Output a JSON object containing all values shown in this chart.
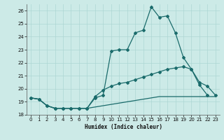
{
  "xlabel": "Humidex (Indice chaleur)",
  "background_color": "#cceae7",
  "grid_color": "#add6d3",
  "line_color": "#1a6b6b",
  "xlim": [
    -0.5,
    23.5
  ],
  "ylim": [
    18,
    26.5
  ],
  "x_ticks": [
    0,
    1,
    2,
    3,
    4,
    5,
    6,
    7,
    8,
    9,
    10,
    11,
    12,
    13,
    14,
    15,
    16,
    17,
    18,
    19,
    20,
    21,
    22,
    23
  ],
  "y_ticks": [
    18,
    19,
    20,
    21,
    22,
    23,
    24,
    25,
    26
  ],
  "line1_x": [
    0,
    1,
    2,
    3,
    4,
    5,
    6,
    7,
    8,
    9,
    10,
    11,
    12,
    13,
    14,
    15,
    16,
    17,
    18,
    19,
    20,
    21,
    22,
    23
  ],
  "line1_y": [
    19.3,
    19.2,
    18.7,
    18.5,
    18.5,
    18.5,
    18.5,
    18.5,
    19.3,
    19.5,
    22.9,
    23.0,
    23.0,
    24.3,
    24.5,
    26.3,
    25.5,
    25.6,
    24.3,
    22.4,
    21.5,
    20.3,
    19.5,
    null
  ],
  "line1_markers": [
    0,
    1,
    2,
    3,
    4,
    5,
    6,
    7,
    8,
    9,
    10,
    11,
    12,
    13,
    14,
    15,
    16,
    17,
    18,
    19,
    20,
    21,
    22
  ],
  "line2_x": [
    0,
    1,
    2,
    3,
    4,
    5,
    6,
    7,
    8,
    9,
    10,
    11,
    12,
    13,
    14,
    15,
    16,
    17,
    18,
    19,
    20,
    21,
    22,
    23
  ],
  "line2_y": [
    19.3,
    19.2,
    18.7,
    18.5,
    18.5,
    18.5,
    18.5,
    18.5,
    19.4,
    19.9,
    20.2,
    20.4,
    20.5,
    20.7,
    20.9,
    21.1,
    21.3,
    21.5,
    21.6,
    21.7,
    21.5,
    20.5,
    20.2,
    19.5
  ],
  "line2_markers": [
    0,
    1,
    2,
    3,
    4,
    5,
    6,
    7,
    8,
    9,
    10,
    11,
    12,
    13,
    14,
    15,
    16,
    17,
    18,
    19,
    20,
    21,
    22,
    23
  ],
  "line3_x": [
    0,
    1,
    2,
    3,
    4,
    5,
    6,
    7,
    8,
    9,
    10,
    11,
    12,
    13,
    14,
    15,
    16,
    17,
    18,
    19,
    20,
    21,
    22,
    23
  ],
  "line3_y": [
    19.3,
    19.2,
    18.7,
    18.5,
    18.5,
    18.5,
    18.5,
    18.5,
    18.6,
    18.7,
    18.8,
    18.9,
    19.0,
    19.1,
    19.2,
    19.3,
    19.4,
    19.4,
    19.4,
    19.4,
    19.4,
    19.4,
    19.4,
    19.4
  ],
  "marker_size": 2.0,
  "line_width": 0.9
}
